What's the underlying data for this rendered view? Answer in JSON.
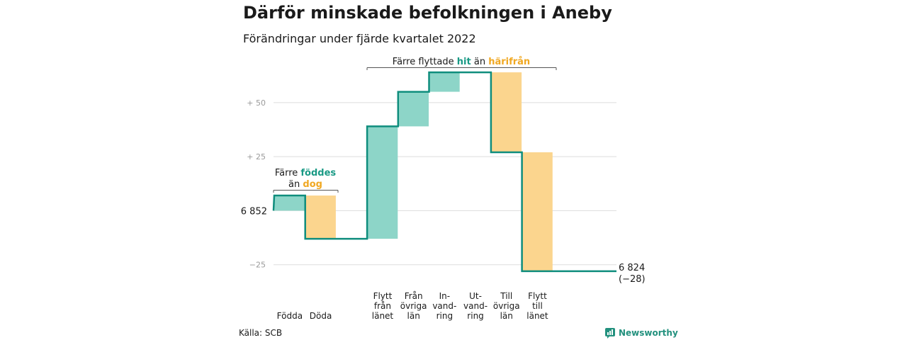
{
  "header": {
    "title": "Därför minskade befolkningen i Aneby",
    "subtitle": "Förändringar under fjärde kvartalet 2022"
  },
  "footer": {
    "source": "Källa: SCB",
    "brand": "Newsworthy"
  },
  "colors": {
    "increase": "#8dd5c8",
    "decrease": "#fbd58e",
    "line": "#0f8d7d",
    "increase_text": "#1a9a85",
    "decrease_text": "#f0a822",
    "grid": "#dddddd",
    "tick_text": "#9a9a9a"
  },
  "chart_data": {
    "type": "waterfall",
    "start_label": "6 852",
    "end_label": [
      "6 824",
      "(−28)"
    ],
    "baseline": 6852,
    "yticks": [
      {
        "value": 50,
        "label": "+ 50"
      },
      {
        "value": 25,
        "label": "+ 25"
      },
      {
        "value": -25,
        "label": "−25"
      }
    ],
    "ylim": [
      -31,
      66
    ],
    "steps": [
      {
        "label": [
          "Födda"
        ],
        "delta": 7,
        "kind": "increase"
      },
      {
        "label": [
          "Döda"
        ],
        "delta": -20,
        "kind": "decrease"
      },
      {
        "label": [],
        "delta": 0,
        "kind": "gap"
      },
      {
        "label": [
          "Flytt",
          "från",
          "länet"
        ],
        "delta": 52,
        "kind": "increase"
      },
      {
        "label": [
          "Från",
          "övriga",
          "län"
        ],
        "delta": 16,
        "kind": "increase"
      },
      {
        "label": [
          "In-",
          "vand-",
          "ring"
        ],
        "delta": 9,
        "kind": "increase"
      },
      {
        "label": [
          "Ut-",
          "vand-",
          "ring"
        ],
        "delta": 0,
        "kind": "decrease"
      },
      {
        "label": [
          "Till",
          "övriga",
          "län"
        ],
        "delta": -37,
        "kind": "decrease"
      },
      {
        "label": [
          "Flytt",
          "till",
          "länet"
        ],
        "delta": -55,
        "kind": "decrease"
      }
    ],
    "annotations": [
      {
        "parts": [
          {
            "text": "Färre ",
            "style": "plain"
          },
          {
            "text": "föddes",
            "style": "increase"
          }
        ],
        "parts2": [
          {
            "text": "än ",
            "style": "plain"
          },
          {
            "text": "dog",
            "style": "decrease"
          }
        ]
      },
      {
        "parts": [
          {
            "text": "Färre flyttade ",
            "style": "plain"
          },
          {
            "text": "hit",
            "style": "increase"
          },
          {
            "text": " än ",
            "style": "plain"
          },
          {
            "text": "härifrån",
            "style": "decrease"
          }
        ]
      }
    ]
  }
}
